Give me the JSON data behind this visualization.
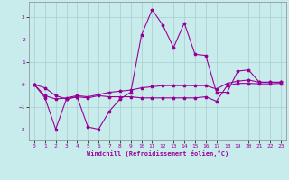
{
  "xlabel": "Windchill (Refroidissement éolien,°C)",
  "background_color": "#c8ecec",
  "line_color": "#990099",
  "grid_color": "#aacccc",
  "xlim": [
    -0.5,
    23.5
  ],
  "ylim": [
    -2.5,
    3.7
  ],
  "yticks": [
    -2,
    -1,
    0,
    1,
    2,
    3
  ],
  "xticks": [
    0,
    1,
    2,
    3,
    4,
    5,
    6,
    7,
    8,
    9,
    10,
    11,
    12,
    13,
    14,
    15,
    16,
    17,
    18,
    19,
    20,
    21,
    22,
    23
  ],
  "spiky_x": [
    0,
    1,
    2,
    3,
    4,
    5,
    6,
    7,
    8,
    9,
    10,
    11,
    12,
    13,
    14,
    15,
    16,
    17,
    18,
    19,
    20,
    21,
    22,
    23
  ],
  "spiky_y": [
    0.0,
    -0.6,
    -2.0,
    -0.65,
    -0.55,
    -1.9,
    -2.0,
    -1.2,
    -0.65,
    -0.35,
    2.2,
    3.35,
    2.65,
    1.65,
    2.75,
    1.35,
    1.3,
    -0.35,
    -0.35,
    0.6,
    0.65,
    0.1,
    0.1,
    0.1
  ],
  "upper_x": [
    0,
    1,
    2,
    3,
    4,
    5,
    6,
    7,
    8,
    9,
    10,
    11,
    12,
    13,
    14,
    15,
    16,
    17,
    18,
    19,
    20,
    21,
    22,
    23
  ],
  "upper_y": [
    0.0,
    -0.5,
    -0.65,
    -0.6,
    -0.5,
    -0.55,
    -0.45,
    -0.35,
    -0.3,
    -0.25,
    -0.15,
    -0.1,
    -0.05,
    -0.05,
    -0.05,
    -0.05,
    -0.05,
    -0.2,
    0.05,
    0.15,
    0.2,
    0.1,
    0.1,
    0.1
  ],
  "lower_x": [
    0,
    1,
    2,
    3,
    4,
    5,
    6,
    7,
    8,
    9,
    10,
    11,
    12,
    13,
    14,
    15,
    16,
    17,
    18,
    19,
    20,
    21,
    22,
    23
  ],
  "lower_y": [
    0.0,
    -0.15,
    -0.5,
    -0.65,
    -0.55,
    -0.6,
    -0.5,
    -0.55,
    -0.55,
    -0.55,
    -0.6,
    -0.6,
    -0.6,
    -0.6,
    -0.6,
    -0.6,
    -0.55,
    -0.75,
    -0.05,
    0.05,
    0.05,
    0.03,
    0.03,
    0.05
  ]
}
